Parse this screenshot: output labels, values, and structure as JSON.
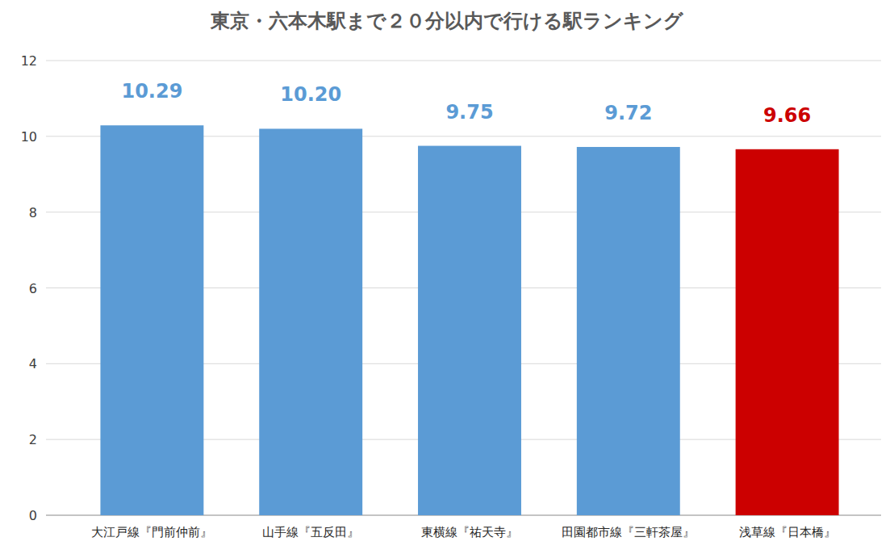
{
  "chart_data": {
    "type": "bar",
    "title": "東京・六本木駅まで２０分以内で行ける駅ランキング",
    "categories": [
      "大江戸線『門前仲前』",
      "山手線『五反田』",
      "東横線『祐天寺』",
      "田園都市線『三軒茶屋』",
      "浅草線『日本橋』"
    ],
    "values": [
      10.29,
      10.2,
      9.75,
      9.72,
      9.66
    ],
    "value_labels": [
      "10.29",
      "10.20",
      "9.75",
      "9.72",
      "9.66"
    ],
    "colors": [
      "#5b9bd5",
      "#5b9bd5",
      "#5b9bd5",
      "#5b9bd5",
      "#cc0000"
    ],
    "ylim": [
      0,
      12
    ],
    "yticks": [
      0,
      2,
      4,
      6,
      8,
      10,
      12
    ],
    "grid": true,
    "data_labels": true
  }
}
